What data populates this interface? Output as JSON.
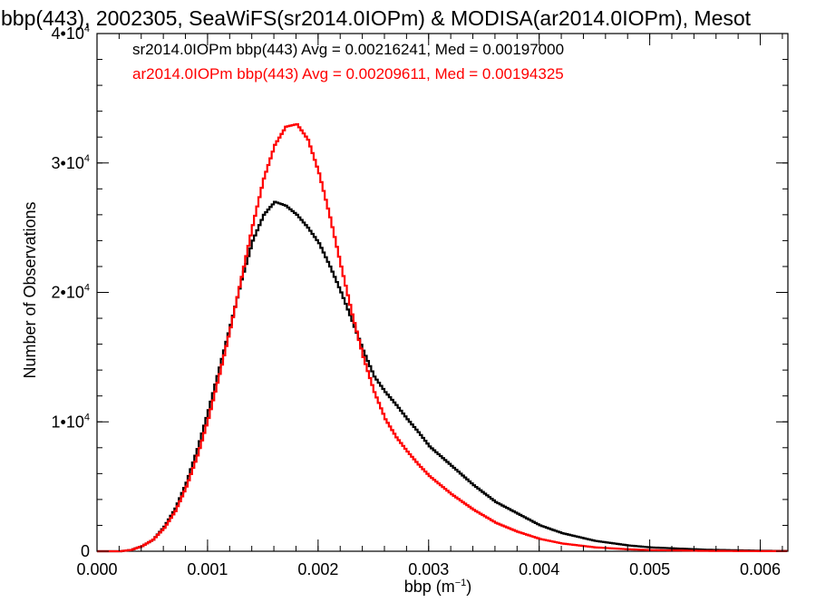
{
  "chart_data": {
    "type": "line",
    "title": "bbp(443), 2002305, SeaWiFS(sr2014.0IOPm) & MODISA(ar2014.0IOPm), Mesot",
    "xlabel_base": "bbp (m",
    "xlabel_exp": "−1",
    "xlabel_end": ")",
    "ylabel": "Number of Observations",
    "xlim": [
      0,
      0.00625
    ],
    "ylim": [
      0,
      40000
    ],
    "x_ticks": [
      {
        "value": 0.0,
        "label": "0.000"
      },
      {
        "value": 0.001,
        "label": "0.001"
      },
      {
        "value": 0.002,
        "label": "0.002"
      },
      {
        "value": 0.003,
        "label": "0.003"
      },
      {
        "value": 0.004,
        "label": "0.004"
      },
      {
        "value": 0.005,
        "label": "0.005"
      },
      {
        "value": 0.006,
        "label": "0.006"
      }
    ],
    "y_ticks": [
      {
        "value": 0,
        "base": "0",
        "exp": ""
      },
      {
        "value": 10000,
        "base": "1•10",
        "exp": "4"
      },
      {
        "value": 20000,
        "base": "2•10",
        "exp": "4"
      },
      {
        "value": 30000,
        "base": "3•10",
        "exp": "4"
      },
      {
        "value": 40000,
        "base": "4•10",
        "exp": "4"
      }
    ],
    "x_minor_step": 0.0002,
    "y_minor_step": 2000,
    "series": [
      {
        "name": "sr2014.0IOPm bbp(443) Avg = 0.00216241, Med = 0.00197000",
        "color": "#000000",
        "x": [
          0.0,
          0.0002,
          0.0003,
          0.0004,
          0.0005,
          0.0006,
          0.0007,
          0.0008,
          0.0009,
          0.001,
          0.0011,
          0.0012,
          0.0013,
          0.0014,
          0.0015,
          0.0016,
          0.0017,
          0.0018,
          0.0019,
          0.002,
          0.0021,
          0.0022,
          0.0023,
          0.0024,
          0.0025,
          0.0026,
          0.0027,
          0.0028,
          0.0029,
          0.003,
          0.0032,
          0.0034,
          0.0036,
          0.0038,
          0.004,
          0.0042,
          0.0045,
          0.0048,
          0.005,
          0.0055,
          0.006,
          0.00625
        ],
        "y": [
          0,
          0,
          100,
          400,
          900,
          1900,
          3300,
          5300,
          7900,
          10900,
          14200,
          17500,
          21000,
          24000,
          26000,
          27000,
          26700,
          26000,
          25000,
          23800,
          22000,
          20000,
          17800,
          15500,
          13500,
          12300,
          11300,
          10200,
          9200,
          8100,
          6600,
          5100,
          3800,
          2900,
          2000,
          1400,
          800,
          450,
          300,
          120,
          40,
          20
        ]
      },
      {
        "name": "ar2014.0IOPm bbp(443) Avg = 0.00209611, Med = 0.00194325",
        "color": "#ff0000",
        "x": [
          0.0,
          0.0002,
          0.0003,
          0.0004,
          0.0005,
          0.0006,
          0.0007,
          0.0008,
          0.0009,
          0.001,
          0.0011,
          0.0012,
          0.0013,
          0.0014,
          0.0015,
          0.0016,
          0.0017,
          0.0018,
          0.0019,
          0.002,
          0.0021,
          0.0022,
          0.0023,
          0.0024,
          0.0025,
          0.0026,
          0.0027,
          0.0028,
          0.0029,
          0.003,
          0.0032,
          0.0034,
          0.0036,
          0.0038,
          0.004,
          0.0042,
          0.0045,
          0.0048,
          0.005,
          0.0055,
          0.006,
          0.00625
        ],
        "y": [
          0,
          0,
          100,
          400,
          900,
          1800,
          3100,
          5000,
          7400,
          10300,
          13700,
          17300,
          21200,
          25200,
          28800,
          31400,
          32800,
          33000,
          31800,
          29200,
          25800,
          22000,
          18300,
          15000,
          12300,
          10200,
          8800,
          7700,
          6700,
          5800,
          4400,
          3200,
          2200,
          1500,
          950,
          600,
          300,
          150,
          90,
          30,
          10,
          5
        ]
      }
    ]
  }
}
